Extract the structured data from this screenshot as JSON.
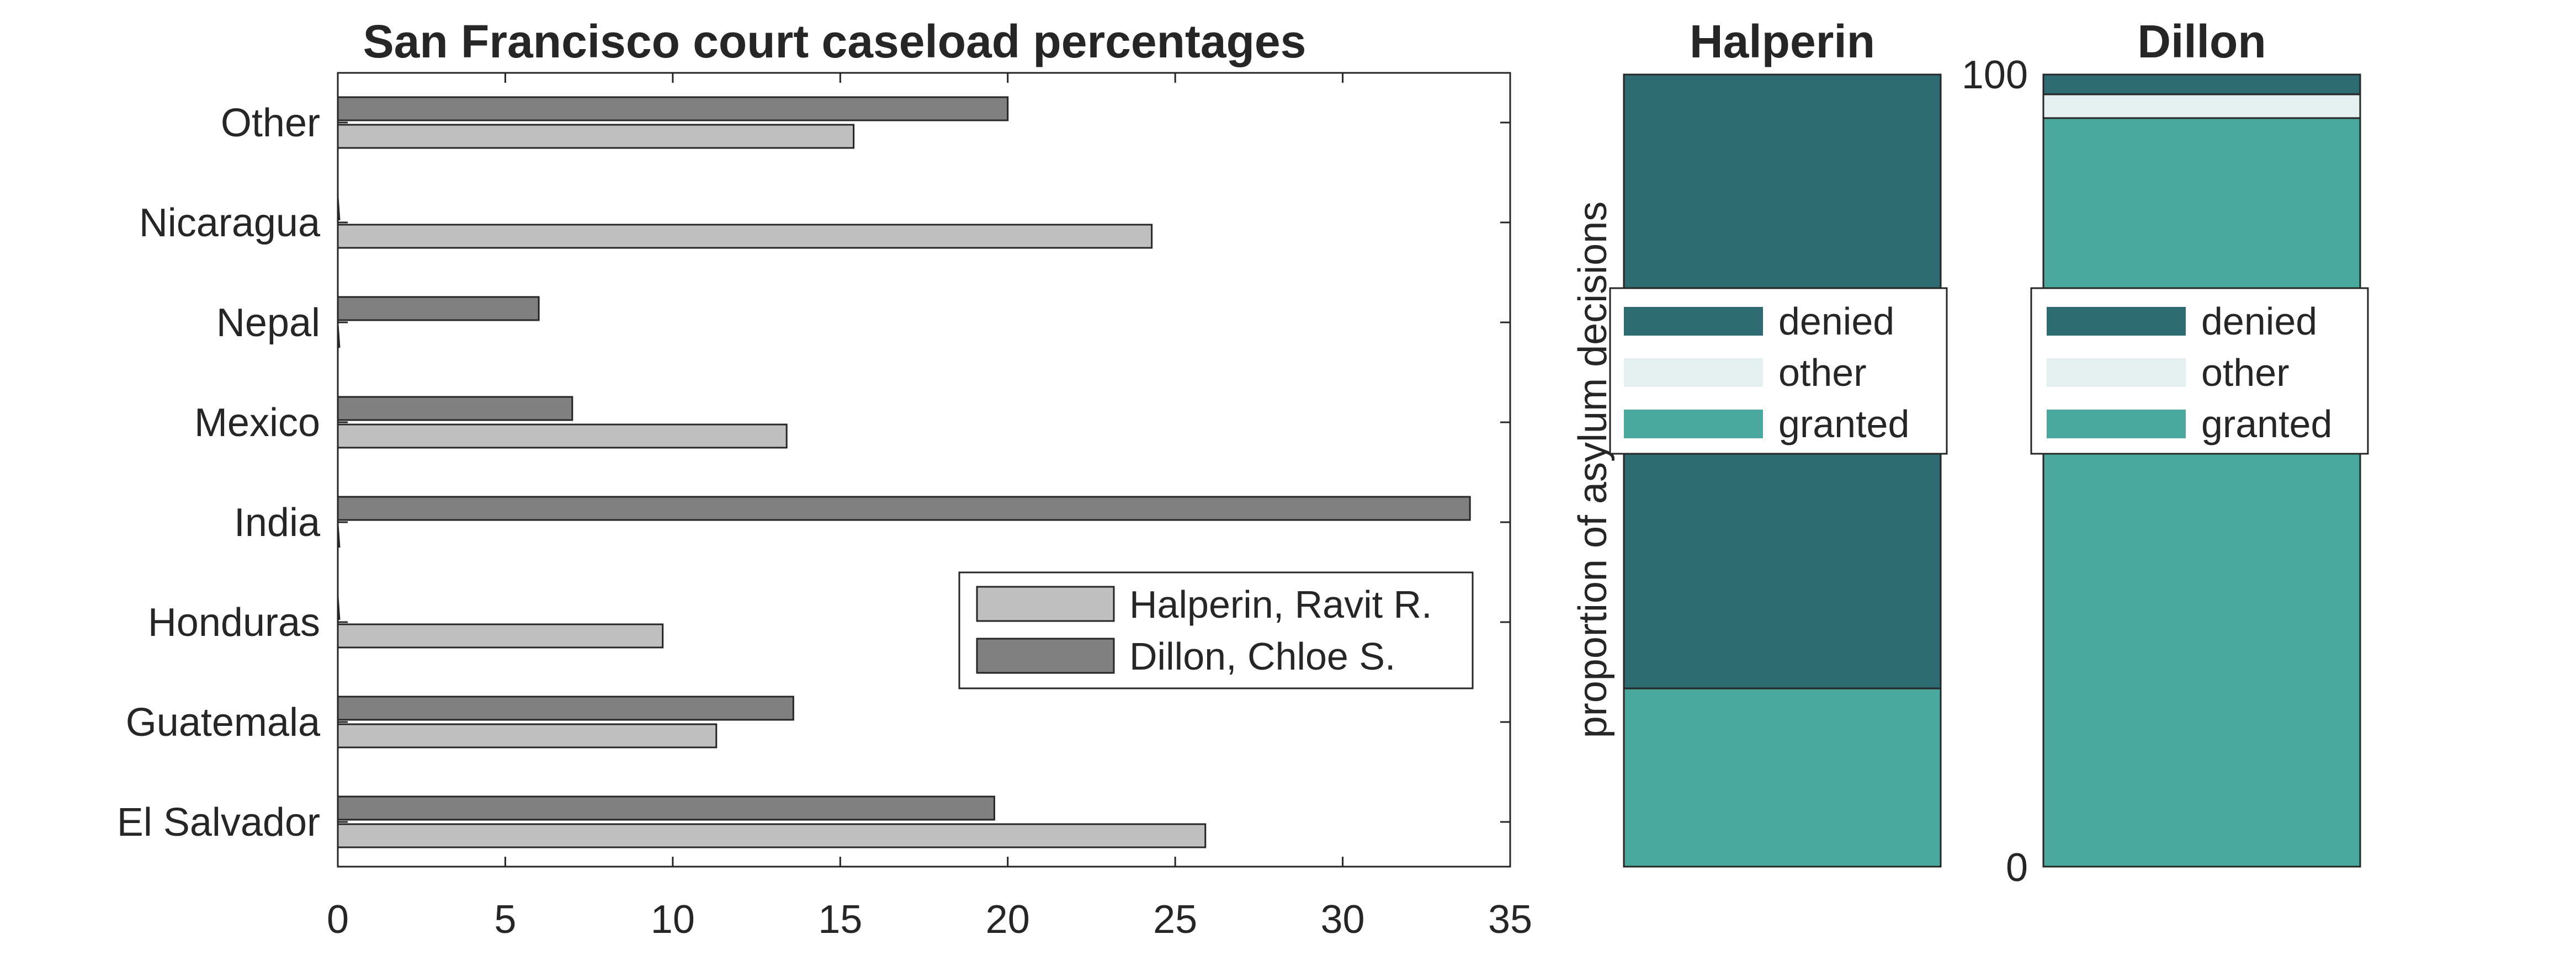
{
  "chart_data": [
    {
      "type": "bar",
      "orientation": "horizontal",
      "title": "San Francisco court caseload percentages",
      "xlabel": "",
      "ylabel": "",
      "xlim": [
        0,
        35
      ],
      "xticks": [
        "0",
        "5",
        "10",
        "15",
        "20",
        "25",
        "30",
        "35"
      ],
      "categories": [
        "El Salvador",
        "Guatemala",
        "Honduras",
        "India",
        "Mexico",
        "Nepal",
        "Nicaragua",
        "Other"
      ],
      "series": [
        {
          "name": "Halperin, Ravit R.",
          "color": "#bfbfbf",
          "values": [
            25.9,
            11.3,
            9.7,
            0,
            13.4,
            0,
            24.3,
            15.4
          ]
        },
        {
          "name": "Dillon, Chloe S.",
          "color": "#808080",
          "values": [
            19.6,
            13.6,
            0,
            33.8,
            7.0,
            6.0,
            0,
            20.0
          ]
        }
      ],
      "legend": "bottom-right",
      "grid": false
    },
    {
      "type": "bar",
      "stacked": true,
      "title": "Halperin",
      "ylabel": "proportion of asylum decisions",
      "ylim": [
        0,
        100
      ],
      "segments": [
        {
          "name": "granted",
          "value": 22.5,
          "color": "#4aa89f"
        },
        {
          "name": "other",
          "value": 0,
          "color": "#e4f0f0"
        },
        {
          "name": "denied",
          "value": 77.5,
          "color": "#2d6a72"
        }
      ],
      "legend_order": [
        "denied",
        "other",
        "granted"
      ],
      "legend": "middle"
    },
    {
      "type": "bar",
      "stacked": true,
      "title": "Dillon",
      "ylim": [
        0,
        100
      ],
      "yticks": [
        "0",
        "100"
      ],
      "segments": [
        {
          "name": "granted",
          "value": 94.5,
          "color": "#4aa89f"
        },
        {
          "name": "other",
          "value": 3.0,
          "color": "#e4f0f0"
        },
        {
          "name": "denied",
          "value": 2.5,
          "color": "#2d6a72"
        }
      ],
      "legend_order": [
        "denied",
        "other",
        "granted"
      ],
      "legend": "middle"
    }
  ]
}
